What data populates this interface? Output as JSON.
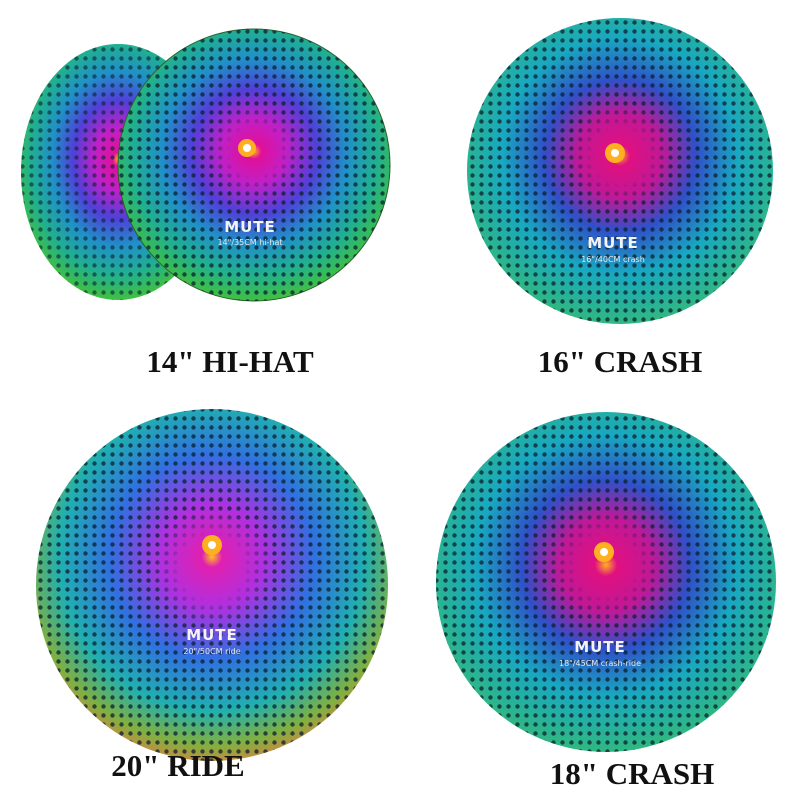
{
  "labels": [
    "14\" HI-HAT",
    "16\" CRASH",
    "20\" RIDE",
    "18\" CRASH"
  ],
  "cymbals": [
    {
      "logo": "MUTE",
      "model": "14\"/35CM hi-hat"
    },
    {
      "logo": "MUTE",
      "model": "16\"/40CM crash"
    },
    {
      "logo": "MUTE",
      "model": "20\"/50CM ride"
    },
    {
      "logo": "MUTE",
      "model": "18\"/45CM crash-ride"
    }
  ]
}
